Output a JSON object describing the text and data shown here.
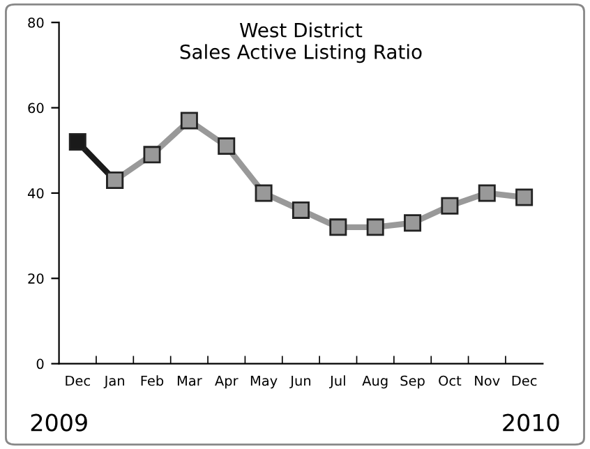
{
  "chart_data": {
    "type": "line",
    "title": "West District\nSales Active Listing Ratio",
    "categories": [
      "Dec",
      "Jan",
      "Feb",
      "Mar",
      "Apr",
      "May",
      "Jun",
      "Jul",
      "Aug",
      "Sep",
      "Oct",
      "Nov",
      "Dec"
    ],
    "series": [
      {
        "color": "#1a1a1a",
        "values": [
          52,
          43,
          null,
          null,
          null,
          null,
          null,
          null,
          null,
          null,
          null,
          null,
          null
        ]
      },
      {
        "color": "#999999",
        "values": [
          null,
          43,
          49,
          57,
          51,
          40,
          36,
          32,
          32,
          33,
          37,
          40,
          39
        ]
      }
    ],
    "ylim": [
      0,
      80
    ],
    "yticks": [
      0,
      20,
      40,
      60,
      80
    ],
    "grid": false,
    "legend": false,
    "marker": "square",
    "line_style": "solid",
    "annotations": [
      "2009",
      "2010"
    ]
  }
}
